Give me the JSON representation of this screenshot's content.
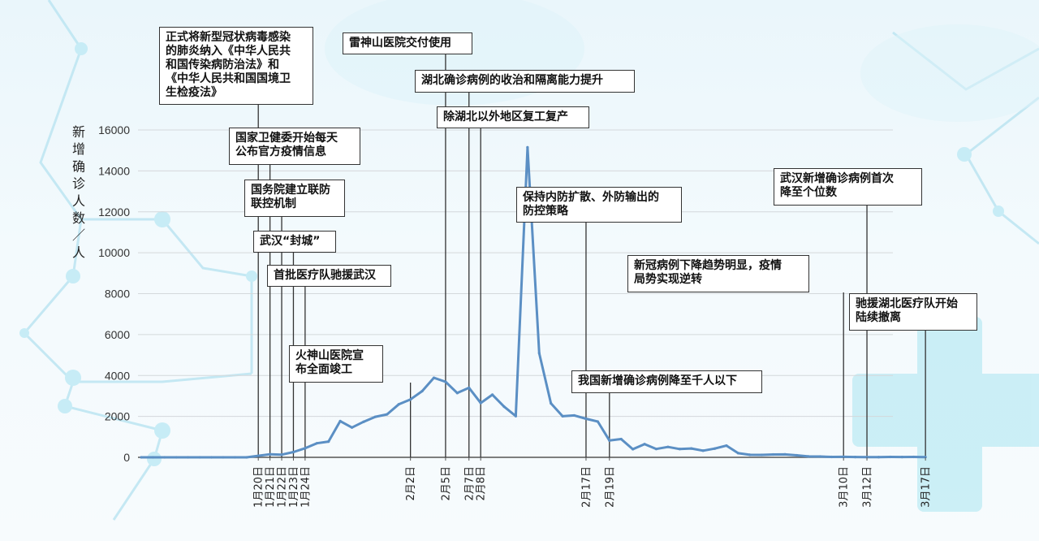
{
  "chart_data": {
    "type": "line",
    "ylabel": "新增确诊人数／人",
    "ylim": [
      0,
      16000
    ],
    "y_ticks": [
      "0",
      "2000",
      "4000",
      "6000",
      "8000",
      "10000",
      "12000",
      "14000",
      "16000"
    ],
    "grid": true,
    "series_color": "#5b8fc4",
    "x_tick_labels": [
      "1月20日",
      "1月21日",
      "1月22日",
      "1月23日",
      "1月24日",
      "2月2日",
      "2月5日",
      "2月7日",
      "2月8日",
      "2月17日",
      "2月19日",
      "3月10日",
      "3月12日",
      "3月17日"
    ],
    "series": [
      {
        "x": [
          "1月10日",
          "1月11日",
          "1月12日",
          "1月13日",
          "1月14日",
          "1月15日",
          "1月16日",
          "1月17日",
          "1月18日",
          "1月19日",
          "1月20日",
          "1月21日",
          "1月22日",
          "1月23日",
          "1月24日",
          "1月25日",
          "1月26日",
          "1月27日",
          "1月28日",
          "1月29日",
          "1月30日",
          "1月31日",
          "2月1日",
          "2月2日",
          "2月3日",
          "2月4日",
          "2月5日",
          "2月6日",
          "2月7日",
          "2月8日",
          "2月9日",
          "2月10日",
          "2月11日",
          "2月12日",
          "2月13日",
          "2月14日",
          "2月15日",
          "2月16日",
          "2月17日",
          "2月18日",
          "2月19日",
          "2月20日",
          "2月21日",
          "2月22日",
          "2月23日",
          "2月24日",
          "2月25日",
          "2月26日",
          "2月27日",
          "2月28日",
          "2月29日",
          "3月1日",
          "3月2日",
          "3月3日",
          "3月4日",
          "3月5日",
          "3月6日",
          "3月7日",
          "3月8日",
          "3月9日",
          "3月10日",
          "3月11日",
          "3月12日",
          "3月13日",
          "3月14日",
          "3月15日",
          "3月16日",
          "3月17日"
        ],
        "values": [
          0,
          0,
          0,
          0,
          0,
          0,
          0,
          0,
          0,
          0,
          77,
          149,
          131,
          259,
          444,
          688,
          769,
          1771,
          1459,
          1737,
          1982,
          2102,
          2590,
          2829,
          3235,
          3887,
          3694,
          3143,
          3399,
          2656,
          3062,
          2478,
          2015,
          15152,
          5090,
          2641,
          2009,
          2048,
          1886,
          1749,
          820,
          892,
          397,
          648,
          409,
          508,
          406,
          433,
          327,
          427,
          573,
          202,
          125,
          119,
          139,
          143,
          99,
          44,
          40,
          19,
          24,
          15,
          8,
          11,
          20,
          16,
          21,
          13
        ]
      }
    ],
    "annotations": [
      {
        "text": "正式将新型冠状病毒感染\n的肺炎纳入《中华人民共\n和国传染病防治法》和\n《中华人民共和国国境卫\n生检疫法》",
        "date": "1月20日"
      },
      {
        "text": "国家卫健委开始每天\n公布官方疫情信息",
        "date": "1月21日"
      },
      {
        "text": "国务院建立联防\n联控机制",
        "date": "1月22日"
      },
      {
        "text": "武汉“封城”",
        "date": "1月23日"
      },
      {
        "text": "首批医疗队驰援武汉",
        "date": "1月24日"
      },
      {
        "text": "火神山医院宣\n布全面竣工",
        "date": "2月2日"
      },
      {
        "text": "雷神山医院交付使用",
        "date": "2月5日"
      },
      {
        "text": "湖北确诊病例的收治和隔离能力提升",
        "date": "2月7日"
      },
      {
        "text": "除湖北以外地区复工复产",
        "date": "2月8日"
      },
      {
        "text": "保持内防扩散、外防输出的\n防控策略",
        "date": "2月17日"
      },
      {
        "text": "我国新增确诊病例降至千人以下",
        "date": "2月19日"
      },
      {
        "text": "新冠病例下降趋势明显，疫情\n局势实现逆转",
        "date": "3月10日"
      },
      {
        "text": "武汉新增确诊病例首次\n降至个位数",
        "date": "3月12日"
      },
      {
        "text": "驰援湖北医疗队开始\n陆续撤离",
        "date": "3月17日"
      }
    ]
  }
}
